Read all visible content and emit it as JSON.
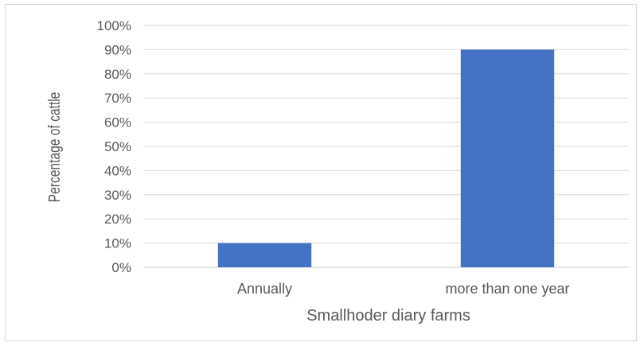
{
  "chart_data": {
    "type": "bar",
    "title": "",
    "xlabel": "Smallhoder diary farms",
    "ylabel": "Percentage of cattle",
    "categories": [
      "Annually",
      "more than one year"
    ],
    "values": [
      10,
      90
    ],
    "ylim": [
      0,
      100
    ],
    "yticks": [
      "0%",
      "10%",
      "20%",
      "30%",
      "40%",
      "50%",
      "60%",
      "70%",
      "80%",
      "90%",
      "100%"
    ],
    "grid": true,
    "legend": "none",
    "bar_color": "#4472c4",
    "gridline_color": "#d9d9d9"
  }
}
